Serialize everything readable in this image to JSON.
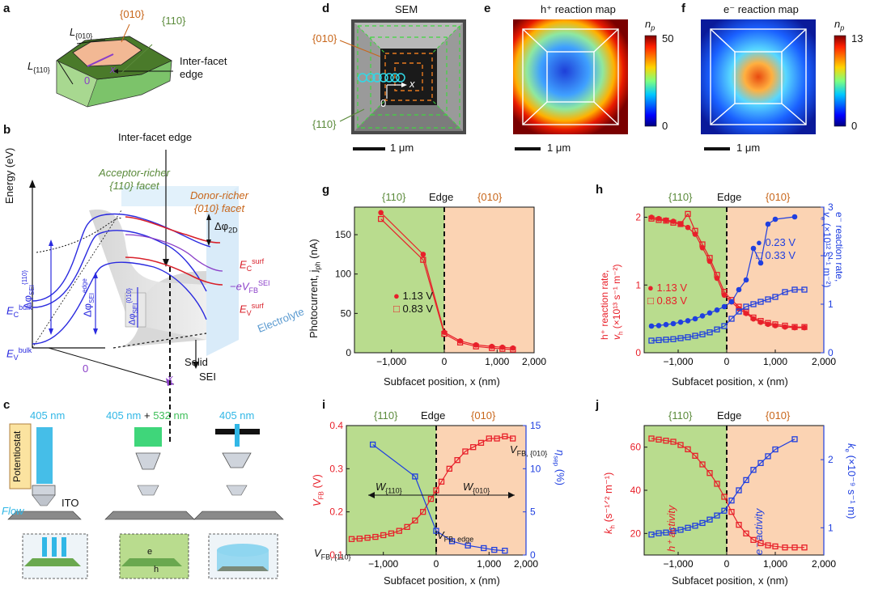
{
  "panels": {
    "a": {
      "letter": "a",
      "facet_010": "{010}",
      "facet_110": "{110}",
      "edge": "Inter-facet edge",
      "l010": "L",
      "l010_sub": "{010}",
      "l110": "L",
      "l110_sub": "{110}",
      "x": "x",
      "zero": "0"
    },
    "b": {
      "letter": "b",
      "edge": "Inter-facet edge",
      "energy": "Energy (eV)",
      "acceptor1": "Acceptor-richer",
      "acceptor2": "{110} facet",
      "donor1": "Donor-richer",
      "donor2": "{010} facet",
      "ec_bulk": "E",
      "ec_bulk_sub": "C",
      "ec_bulk_sup": "bulk",
      "ev_bulk": "E",
      "ev_bulk_sub": "V",
      "ev_bulk_sup": "bulk",
      "ec_surf": "E",
      "ec_surf_sub": "C",
      "ec_surf_sup": "surf",
      "ev_surf": "E",
      "ev_surf_sub": "V",
      "ev_surf_sup": "surf",
      "vfb": "−eV",
      "vfb_sub": "FB",
      "vfb_sup": "SEI",
      "dphi2d": "Δφ",
      "dphi2d_sub": "2D",
      "dphi110": "Δφ",
      "dphi110_sub": "SEI",
      "dphi110_sup": "{110}",
      "dphiedge": "Δφ",
      "dphiedge_sub": "SEI",
      "dphiedge_sup": "edge",
      "dphi010": "Δφ",
      "dphi010_sub": "SEI",
      "dphi010_sup": "{010}",
      "solid": "Solid",
      "sei": "SEI",
      "electrolyte": "Electrolyte",
      "zero": "0",
      "x": "x"
    },
    "c": {
      "letter": "c",
      "w1": "405 nm",
      "w2a": "405 nm",
      "w2plus": " + ",
      "w2b": "532 nm",
      "w3": "405 nm",
      "potentiostat": "Potentiostat",
      "ito": "ITO",
      "flow": "Flow",
      "e": "e",
      "h": "h"
    },
    "d": {
      "letter": "d",
      "title": "SEM",
      "facet_010": "{010}",
      "facet_110": "{110}",
      "x": "x",
      "zero": "0",
      "scale": "1 μm"
    },
    "e": {
      "letter": "e",
      "title": "h⁺ reaction map",
      "cbar_label": "n",
      "cbar_sub": "p",
      "cmax": "50",
      "cmin": "0",
      "scale": "1 μm"
    },
    "f": {
      "letter": "f",
      "title": "e⁻ reaction map",
      "cbar_label": "n",
      "cbar_sub": "p",
      "cmax": "13",
      "cmin": "0",
      "scale": "1 μm"
    },
    "g": {
      "letter": "g",
      "f110": "{110}",
      "edge": "Edge",
      "f010": "{010}",
      "xlabel": "Subfacet position, x (nm)",
      "ylabel": "Photocurrent, j",
      "ylabel_sub": "ph",
      "ylabel_unit": " (nA)",
      "leg1": "1.13 V",
      "leg2": "0.83 V",
      "xticks": [
        "−1,000",
        "0",
        "1,000",
        "2,000"
      ],
      "yticks": [
        "0",
        "50",
        "100",
        "150"
      ]
    },
    "h": {
      "letter": "h",
      "f110": "{110}",
      "edge": "Edge",
      "f010": "{010}",
      "xlabel": "Subfacet position, x (nm)",
      "yl1": "h⁺ reaction rate,",
      "yl2": "v",
      "yl2_sub": "h",
      "yl2_rest": " (×10¹³ s⁻¹ m⁻²)",
      "yr1": "e⁻ reaction rate,",
      "yr2": "v",
      "yr2_sub": "e",
      "yr2_rest": " (×10¹² s⁻¹ m⁻²)",
      "leg1": "1.13 V",
      "leg2": "0.83 V",
      "leg3": "0.23 V",
      "leg4": "0.33 V",
      "xticks": [
        "−1,000",
        "0",
        "1,000",
        "2,000"
      ],
      "ylticks": [
        "0",
        "1",
        "2"
      ],
      "yrticks": [
        "0",
        "1",
        "2",
        "3"
      ]
    },
    "i": {
      "letter": "i",
      "f110": "{110}",
      "edge": "Edge",
      "f010": "{010}",
      "xlabel": "Subfacet position, x (nm)",
      "ylabel": "V",
      "ylabel_sub": "FB",
      "ylabel_unit": " (V)",
      "yrlabel": "η",
      "yrlabel_sub": "sep",
      "yrlabel_unit": " (%)",
      "w110": "W",
      "w110_sub": "{110}",
      "w010": "W",
      "w010_sub": "{010}",
      "vfb010": "V",
      "vfb010_sub": "FB, {010}",
      "vfbedge": "V",
      "vfbedge_sub": "FB, edge",
      "vfb110": "V",
      "vfb110_sub": "FB, {110}",
      "xticks": [
        "−1,000",
        "0",
        "1,000",
        "2,000"
      ],
      "ylticks": [
        "0.1",
        "0.2",
        "0.3",
        "0.4"
      ],
      "yrticks": [
        "0",
        "5",
        "10",
        "15"
      ]
    },
    "j": {
      "letter": "j",
      "f110": "{110}",
      "edge": "Edge",
      "f010": "{010}",
      "xlabel": "Subfacet position, x (nm)",
      "ylabel": "k",
      "ylabel_sub": "h",
      "ylabel_unit": " (s⁻¹ᐟ² m⁻¹)",
      "yrlabel": "k",
      "yrlabel_sub": "e",
      "yrlabel_unit": " (×10⁻⁹ s⁻¹ m)",
      "hact": "h⁺ activity",
      "eact": "e⁻ activity",
      "xticks": [
        "−1,000",
        "0",
        "1,000",
        "2,000"
      ],
      "ylticks": [
        "20",
        "40",
        "60"
      ],
      "yrticks": [
        "1",
        "2"
      ]
    }
  },
  "colors": {
    "red": "#e8202a",
    "blue": "#1f3fe0",
    "green_bg": "#b9dc8e",
    "orange_bg": "#fbd3b3",
    "facet110": "#5a8a3a",
    "facet010": "#c8661a",
    "cyan": "#31b7e6",
    "purple": "#8a3ec8"
  },
  "chart_data": [
    {
      "type": "scatter",
      "panel": "g",
      "xlabel": "Subfacet position, x (nm)",
      "ylabel": "Photocurrent, j_ph (nA)",
      "xlim": [
        -1700,
        1700
      ],
      "ylim": [
        0,
        185
      ],
      "series": [
        {
          "name": "1.13 V",
          "x": [
            -1200,
            -400,
            0,
            300,
            600,
            900,
            1100,
            1300
          ],
          "y": [
            178,
            125,
            26,
            15,
            10,
            8,
            7,
            6
          ]
        },
        {
          "name": "0.83 V",
          "x": [
            -1200,
            -400,
            0,
            300,
            600,
            900,
            1100,
            1300
          ],
          "y": [
            170,
            118,
            24,
            13,
            8,
            6,
            5,
            4
          ]
        }
      ]
    },
    {
      "type": "scatter",
      "panel": "h",
      "xlabel": "Subfacet position, x (nm)",
      "ylabel": "h⁺ reaction rate, v_h (×10¹³ s⁻¹ m⁻²)",
      "y2label": "e⁻ reaction rate, v_e (×10¹² s⁻¹ m⁻²)",
      "xlim": [
        -1700,
        2000
      ],
      "ylim": [
        0,
        2.15
      ],
      "y2lim": [
        0,
        3
      ],
      "series": [
        {
          "name": "1.13 V",
          "axis": "left",
          "x": [
            -1550,
            -1400,
            -1250,
            -1100,
            -950,
            -800,
            -650,
            -500,
            -350,
            -200,
            -50,
            100,
            250,
            400,
            550,
            700,
            850,
            1000,
            1200,
            1400,
            1600
          ],
          "y": [
            2.0,
            1.98,
            1.96,
            1.94,
            1.9,
            1.85,
            1.75,
            1.55,
            1.35,
            1.1,
            0.85,
            0.75,
            0.65,
            0.58,
            0.5,
            0.45,
            0.42,
            0.4,
            0.38,
            0.37,
            0.37
          ]
        },
        {
          "name": "0.83 V",
          "axis": "left",
          "x": [
            -1550,
            -1400,
            -1250,
            -1100,
            -950,
            -800,
            -650,
            -500,
            -350,
            -200,
            -50,
            100,
            250,
            400,
            550,
            700,
            850,
            1000,
            1200,
            1400,
            1600
          ],
          "y": [
            1.98,
            1.96,
            1.95,
            1.92,
            1.9,
            2.05,
            1.8,
            1.6,
            1.4,
            1.15,
            0.9,
            0.78,
            0.68,
            0.6,
            0.52,
            0.47,
            0.44,
            0.42,
            0.4,
            0.38,
            0.38
          ]
        },
        {
          "name": "0.23 V",
          "axis": "right",
          "x": [
            -1550,
            -1400,
            -1250,
            -1100,
            -950,
            -800,
            -650,
            -500,
            -350,
            -200,
            -50,
            100,
            250,
            400,
            550,
            700,
            850,
            1000,
            1400
          ],
          "y": [
            0.55,
            0.56,
            0.58,
            0.6,
            0.63,
            0.66,
            0.7,
            0.76,
            0.82,
            0.88,
            0.95,
            1.05,
            1.3,
            1.5,
            2.15,
            1.85,
            2.65,
            2.75,
            2.8
          ]
        },
        {
          "name": "0.33 V",
          "axis": "right",
          "x": [
            -1550,
            -1400,
            -1250,
            -1100,
            -950,
            -800,
            -650,
            -500,
            -350,
            -200,
            -50,
            100,
            250,
            400,
            550,
            700,
            850,
            1000,
            1200,
            1400,
            1600
          ],
          "y": [
            0.25,
            0.26,
            0.27,
            0.28,
            0.3,
            0.32,
            0.35,
            0.38,
            0.42,
            0.48,
            0.55,
            0.7,
            0.85,
            0.95,
            1.0,
            1.05,
            1.1,
            1.15,
            1.25,
            1.3,
            1.3
          ]
        }
      ]
    },
    {
      "type": "scatter",
      "panel": "i",
      "xlabel": "Subfacet position, x (nm)",
      "ylabel": "V_FB (V)",
      "y2label": "η_sep (%)",
      "xlim": [
        -1700,
        1700
      ],
      "ylim": [
        0.1,
        0.4
      ],
      "y2lim": [
        0,
        15
      ],
      "series": [
        {
          "name": "V_FB",
          "axis": "left",
          "x": [
            -1600,
            -1450,
            -1300,
            -1150,
            -1000,
            -850,
            -700,
            -550,
            -400,
            -250,
            -100,
            0,
            100,
            250,
            400,
            550,
            700,
            850,
            1000,
            1150,
            1300,
            1450
          ],
          "y": [
            0.137,
            0.138,
            0.14,
            0.142,
            0.146,
            0.15,
            0.156,
            0.165,
            0.18,
            0.2,
            0.23,
            0.25,
            0.27,
            0.3,
            0.32,
            0.34,
            0.35,
            0.36,
            0.37,
            0.37,
            0.375,
            0.37
          ]
        },
        {
          "name": "η_sep",
          "axis": "right",
          "x": [
            -1200,
            -400,
            0,
            300,
            600,
            900,
            1100,
            1300
          ],
          "y": [
            12.8,
            9.1,
            2.8,
            1.6,
            1.1,
            0.8,
            0.6,
            0.5
          ]
        }
      ]
    },
    {
      "type": "scatter",
      "panel": "j",
      "xlabel": "Subfacet position, x (nm)",
      "ylabel": "k_h (s⁻¹ᐟ² m⁻¹)",
      "y2label": "k_e (×10⁻⁹ s⁻¹ m)",
      "xlim": [
        -1700,
        2000
      ],
      "ylim": [
        10,
        70
      ],
      "y2lim": [
        0.6,
        2.5
      ],
      "series": [
        {
          "name": "h⁺ activity",
          "axis": "left",
          "x": [
            -1550,
            -1400,
            -1250,
            -1100,
            -950,
            -800,
            -650,
            -500,
            -350,
            -200,
            -50,
            100,
            250,
            400,
            550,
            700,
            850,
            1000,
            1200,
            1400,
            1600
          ],
          "y": [
            64,
            63.5,
            63,
            62.5,
            61,
            59,
            56,
            52,
            48,
            43,
            37,
            30,
            24,
            20,
            17,
            15.5,
            14.5,
            14,
            13.5,
            13.5,
            13.5
          ]
        },
        {
          "name": "e⁻ activity",
          "axis": "right",
          "x": [
            -1550,
            -1400,
            -1250,
            -1100,
            -950,
            -800,
            -650,
            -500,
            -350,
            -200,
            -50,
            100,
            250,
            400,
            550,
            700,
            850,
            1000,
            1400
          ],
          "y": [
            0.9,
            0.92,
            0.93,
            0.95,
            0.97,
            1.0,
            1.03,
            1.07,
            1.12,
            1.18,
            1.25,
            1.4,
            1.55,
            1.7,
            1.85,
            1.95,
            2.05,
            2.15,
            2.3
          ]
        }
      ]
    }
  ]
}
